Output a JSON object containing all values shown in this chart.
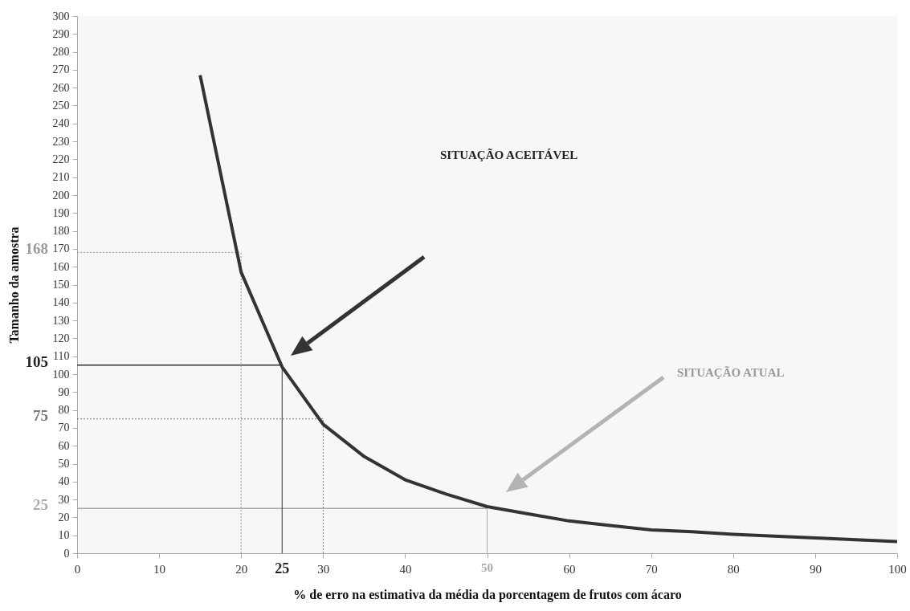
{
  "chart_data": {
    "type": "line",
    "xlabel": "% de erro na estimativa da média da porcentagem de frutos com ácaro",
    "ylabel": "Tamanho da amostra",
    "x": [
      15,
      20,
      25,
      30,
      35,
      40,
      45,
      50,
      55,
      60,
      65,
      70,
      75,
      80,
      85,
      90,
      95,
      100
    ],
    "series": [
      {
        "color": "#333333",
        "values": [
          267,
          157,
          104,
          72,
          54,
          41,
          33,
          26,
          22,
          18,
          15.5,
          13,
          12,
          10.5,
          9.5,
          8.5,
          7.5,
          6.5
        ]
      }
    ],
    "xlim": [
      0,
      100
    ],
    "xticks": [
      0,
      10,
      20,
      30,
      40,
      {
        "value": 50,
        "label": null
      },
      60,
      70,
      80,
      90,
      100
    ],
    "ylim": [
      0,
      300
    ],
    "yticks": [
      0,
      10,
      20,
      30,
      40,
      50,
      60,
      70,
      80,
      90,
      100,
      110,
      120,
      130,
      140,
      150,
      160,
      170,
      180,
      190,
      200,
      210,
      220,
      230,
      240,
      250,
      260,
      270,
      280,
      290,
      300
    ],
    "ref_lines": [
      {
        "axis": "y",
        "value": 168,
        "label": "168",
        "color": "#999999",
        "line_style": "dotted"
      },
      {
        "axis": "y",
        "value": 105,
        "label": "105",
        "color": "#333333",
        "line_style": "solid"
      },
      {
        "axis": "y",
        "value": 75,
        "label": "75",
        "color": "#777777",
        "line_style": "dotted"
      },
      {
        "axis": "y",
        "value": 25,
        "label": "25",
        "color": "#aaaaaa",
        "line_style": "solid"
      },
      {
        "axis": "x",
        "value": 20,
        "label": null,
        "color": "#999999",
        "line_style": "dotted"
      },
      {
        "axis": "x",
        "value": 25,
        "label": "25",
        "color": "#333333",
        "line_style": "solid"
      },
      {
        "axis": "x",
        "value": 30,
        "label": null,
        "color": "#777777",
        "line_style": "dotted"
      },
      {
        "axis": "x",
        "value": 50,
        "label": "50",
        "color": "#aaaaaa",
        "line_style": "solid"
      }
    ],
    "annotations": [
      "SITUAÇÃO ACEITÁVEL",
      "SITUAÇÃO ATUAL"
    ],
    "grid": false,
    "marker": "none",
    "line_style": "solid"
  }
}
